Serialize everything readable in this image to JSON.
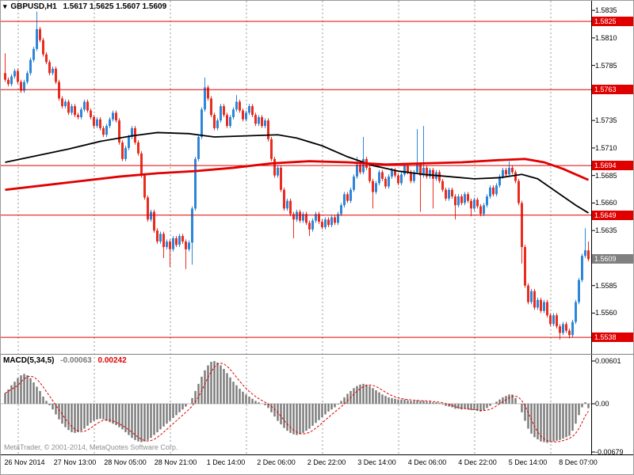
{
  "window": {
    "symbol_period": "GBPUSD,H1",
    "ohlc_text": "1.5617 1.5625 1.5607 1.5609"
  },
  "watermark": "MetaTrader, © 2001-2014, MetaQuotes Software Corp.",
  "colors": {
    "bull": "#2e86d8",
    "bear": "#ea2c1e",
    "sr_line": "#e00000",
    "ma_fast": "#000000",
    "ma_slow": "#e00000",
    "macd_bar": "#7a7a7a",
    "macd_signal": "#e00000",
    "badge_current_bg": "#808080",
    "badge_sr_bg": "#e00000"
  },
  "time_axis": {
    "labels": [
      "26 Nov 2014",
      "27 Nov 13:00",
      "28 Nov 05:00",
      "28 Nov 21:00",
      "1 Dec 14:00",
      "2 Dec 06:00",
      "2 Dec 22:00",
      "3 Dec 14:00",
      "4 Dec 06:00",
      "4 Dec 22:00",
      "5 Dec 14:00",
      "8 Dec 07:00"
    ]
  },
  "chart_data": [
    {
      "type": "candlestick",
      "symbol": "GBPUSD",
      "timeframe": "H1",
      "last_bar": {
        "open": 1.5617,
        "high": 1.5625,
        "low": 1.5607,
        "close": 1.5609
      },
      "ylim": [
        1.5523,
        1.5844
      ],
      "price_ticks": [
        1.5835,
        1.581,
        1.5785,
        1.5735,
        1.571,
        1.5685,
        1.566,
        1.5635,
        1.5585,
        1.556
      ],
      "sr_levels": [
        1.5825,
        1.5763,
        1.5694,
        1.5649,
        1.5538
      ],
      "current_price": 1.5609,
      "first_open": 1.5778,
      "default_wick": 0.0002,
      "closes": [
        1.5772,
        1.5768,
        1.5775,
        1.578,
        1.577,
        1.5762,
        1.577,
        1.5778,
        1.579,
        1.58,
        1.5818,
        1.5808,
        1.5795,
        1.5788,
        1.5778,
        1.5782,
        1.577,
        1.5755,
        1.5748,
        1.5752,
        1.5742,
        1.5748,
        1.574,
        1.5738,
        1.5745,
        1.5752,
        1.5744,
        1.5738,
        1.573,
        1.5736,
        1.5728,
        1.5722,
        1.573,
        1.5736,
        1.5742,
        1.5735,
        1.5715,
        1.57,
        1.571,
        1.572,
        1.5728,
        1.5715,
        1.5705,
        1.5685,
        1.5665,
        1.5645,
        1.5652,
        1.5635,
        1.5625,
        1.5632,
        1.562,
        1.5625,
        1.5618,
        1.5628,
        1.5622,
        1.563,
        1.5625,
        1.5618,
        1.5624,
        1.5655,
        1.57,
        1.572,
        1.5745,
        1.5765,
        1.5755,
        1.574,
        1.5728,
        1.5735,
        1.5748,
        1.574,
        1.573,
        1.5738,
        1.5745,
        1.5752,
        1.5744,
        1.5736,
        1.5742,
        1.5748,
        1.574,
        1.5732,
        1.5738,
        1.573,
        1.5735,
        1.5718,
        1.57,
        1.5685,
        1.5692,
        1.5672,
        1.5655,
        1.5662,
        1.565,
        1.5645,
        1.5652,
        1.5644,
        1.565,
        1.5642,
        1.5636,
        1.5644,
        1.565,
        1.5643,
        1.5638,
        1.5645,
        1.564,
        1.5647,
        1.5642,
        1.565,
        1.5658,
        1.5668,
        1.5662,
        1.5672,
        1.5684,
        1.5695,
        1.5688,
        1.57,
        1.5692,
        1.568,
        1.567,
        1.5678,
        1.5688,
        1.5682,
        1.5675,
        1.5684,
        1.569,
        1.5685,
        1.5678,
        1.5686,
        1.5694,
        1.5688,
        1.568,
        1.5688,
        1.5695,
        1.5685,
        1.5692,
        1.5684,
        1.569,
        1.5682,
        1.5688,
        1.568,
        1.5672,
        1.5664,
        1.5672,
        1.5666,
        1.5658,
        1.5666,
        1.566,
        1.5668,
        1.5662,
        1.5655,
        1.5663,
        1.5657,
        1.565,
        1.5658,
        1.5666,
        1.5674,
        1.5668,
        1.5676,
        1.5684,
        1.569,
        1.5686,
        1.5692,
        1.5688,
        1.568,
        1.566,
        1.562,
        1.5585,
        1.557,
        1.558,
        1.5565,
        1.5572,
        1.5562,
        1.557,
        1.5558,
        1.555,
        1.5558,
        1.5548,
        1.5542,
        1.555,
        1.5544,
        1.554,
        1.5552,
        1.557,
        1.559,
        1.5612,
        1.5617,
        1.5609
      ],
      "high_overrides": {
        "0": 1.5796,
        "10": 1.5834,
        "63": 1.5774,
        "73": 1.5758,
        "111": 1.5702,
        "113": 1.572,
        "130": 1.5727,
        "132": 1.573,
        "159": 1.5698,
        "183": 1.5637
      },
      "low_overrides": {
        "50": 1.561,
        "52": 1.5602,
        "57": 1.56,
        "59": 1.5604,
        "91": 1.5628,
        "96": 1.563,
        "116": 1.5655,
        "131": 1.5652,
        "135": 1.5655,
        "142": 1.5645,
        "147": 1.5648,
        "163": 1.5605,
        "175": 1.5536,
        "178": 1.5537
      },
      "ma_fast_points": [
        [
          0,
          1.5697
        ],
        [
          10,
          1.5703
        ],
        [
          20,
          1.5709
        ],
        [
          30,
          1.5716
        ],
        [
          40,
          1.5721
        ],
        [
          48,
          1.5724
        ],
        [
          58,
          1.5723
        ],
        [
          66,
          1.572
        ],
        [
          76,
          1.5721
        ],
        [
          86,
          1.5722
        ],
        [
          92,
          1.5719
        ],
        [
          100,
          1.5712
        ],
        [
          108,
          1.5702
        ],
        [
          116,
          1.5694
        ],
        [
          124,
          1.5689
        ],
        [
          132,
          1.5686
        ],
        [
          140,
          1.5684
        ],
        [
          148,
          1.5682
        ],
        [
          156,
          1.5683
        ],
        [
          163,
          1.5686
        ],
        [
          168,
          1.5682
        ],
        [
          172,
          1.5674
        ],
        [
          176,
          1.5666
        ],
        [
          180,
          1.5658
        ],
        [
          184,
          1.5651
        ]
      ],
      "ma_slow_points": [
        [
          0,
          1.5672
        ],
        [
          12,
          1.5676
        ],
        [
          24,
          1.568
        ],
        [
          36,
          1.5684
        ],
        [
          48,
          1.5687
        ],
        [
          60,
          1.5689
        ],
        [
          72,
          1.5692
        ],
        [
          84,
          1.5696
        ],
        [
          96,
          1.5698
        ],
        [
          108,
          1.5697
        ],
        [
          120,
          1.5695
        ],
        [
          132,
          1.5696
        ],
        [
          144,
          1.5697
        ],
        [
          156,
          1.5699
        ],
        [
          164,
          1.57
        ],
        [
          170,
          1.5697
        ],
        [
          176,
          1.5691
        ],
        [
          180,
          1.5686
        ],
        [
          184,
          1.5681
        ]
      ]
    },
    {
      "type": "macd_histogram",
      "label": "MACD(5,34,5)",
      "value_main": "-0.00063",
      "value_signal": "0.00242",
      "ylim": [
        -0.00679,
        0.00601
      ],
      "axis_ticks": [
        "0.00601",
        "0.00",
        "-0.00679"
      ],
      "signal_period": 5,
      "values": [
        0.0015,
        0.002,
        0.0026,
        0.0031,
        0.0036,
        0.004,
        0.0042,
        0.004,
        0.0036,
        0.003,
        0.0024,
        0.0018,
        0.001,
        0.0004,
        -0.0002,
        -0.0008,
        -0.0015,
        -0.0022,
        -0.0028,
        -0.0033,
        -0.0037,
        -0.004,
        -0.0041,
        -0.004,
        -0.0038,
        -0.0035,
        -0.0031,
        -0.0027,
        -0.0024,
        -0.0022,
        -0.0021,
        -0.0022,
        -0.0024,
        -0.0026,
        -0.0028,
        -0.003,
        -0.0033,
        -0.0036,
        -0.004,
        -0.0044,
        -0.0048,
        -0.0051,
        -0.0053,
        -0.0054,
        -0.0053,
        -0.0051,
        -0.0048,
        -0.0044,
        -0.004,
        -0.0036,
        -0.0032,
        -0.0028,
        -0.0024,
        -0.002,
        -0.0016,
        -0.0012,
        -0.0008,
        -0.0004,
        0.0,
        0.0008,
        0.0018,
        0.0028,
        0.0038,
        0.0047,
        0.0054,
        0.0059,
        0.006,
        0.0058,
        0.0054,
        0.0049,
        0.0043,
        0.0037,
        0.0031,
        0.0026,
        0.0021,
        0.0017,
        0.0013,
        0.001,
        0.0007,
        0.0004,
        0.0002,
        0.0,
        -0.0002,
        -0.0006,
        -0.0012,
        -0.0018,
        -0.0024,
        -0.0029,
        -0.0034,
        -0.0038,
        -0.0041,
        -0.0043,
        -0.0044,
        -0.0043,
        -0.0041,
        -0.0038,
        -0.0035,
        -0.0031,
        -0.0027,
        -0.0023,
        -0.0019,
        -0.0015,
        -0.0011,
        -0.0008,
        -0.0005,
        -0.0001,
        0.0004,
        0.0009,
        0.0014,
        0.0018,
        0.0022,
        0.0025,
        0.0027,
        0.0028,
        0.0027,
        0.0025,
        0.0022,
        0.0019,
        0.0016,
        0.0013,
        0.0011,
        0.0009,
        0.0008,
        0.0007,
        0.0006,
        0.0006,
        0.0006,
        0.0005,
        0.0004,
        0.0004,
        0.0005,
        0.0004,
        0.0004,
        0.0003,
        0.0003,
        0.0002,
        0.0002,
        0.0001,
        -0.0001,
        -0.0003,
        -0.0004,
        -0.0005,
        -0.0007,
        -0.0007,
        -0.0008,
        -0.0007,
        -0.0008,
        -0.0009,
        -0.0009,
        -0.001,
        -0.0011,
        -0.0009,
        -0.0006,
        -0.0003,
        0.0,
        0.0003,
        0.0006,
        0.0009,
        0.0011,
        0.0013,
        0.0013,
        0.0008,
        0.0,
        -0.0012,
        -0.0024,
        -0.0035,
        -0.0042,
        -0.0047,
        -0.005,
        -0.0053,
        -0.0054,
        -0.0055,
        -0.0054,
        -0.0053,
        -0.0052,
        -0.0051,
        -0.0049,
        -0.0047,
        -0.0045,
        -0.0038,
        -0.0028,
        -0.0016,
        -0.0005,
        0.0002,
        -0.00063
      ]
    }
  ]
}
